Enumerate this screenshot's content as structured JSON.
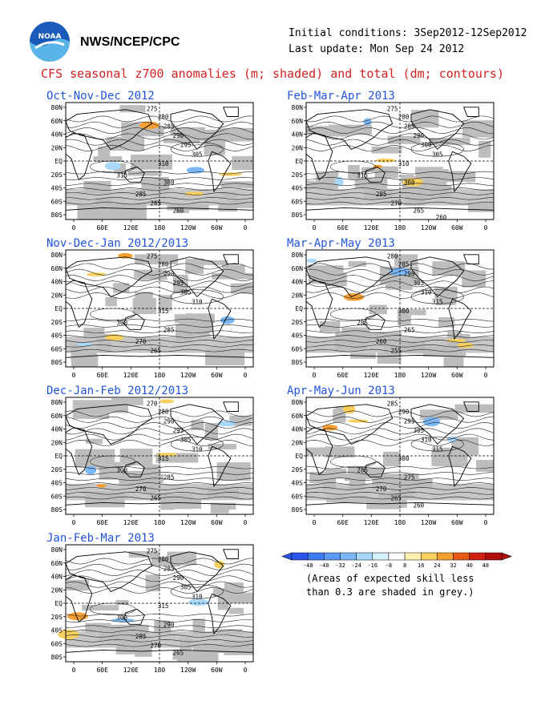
{
  "header": {
    "logo_icon": "noaa-logo-icon",
    "org": "NWS/NCEP/CPC",
    "initial_conditions": "Initial conditions: 3Sep2012-12Sep2012",
    "last_update": "Last update: Mon Sep 24 2012"
  },
  "title": "CFS seasonal z700 anomalies (m; shaded) and total (dm; contours)",
  "axes": {
    "lat_labels": [
      "80N",
      "60N",
      "40N",
      "20N",
      "EQ",
      "20S",
      "40S",
      "60S",
      "80S"
    ],
    "lon_labels": [
      "0",
      "60E",
      "120E",
      "180",
      "120W",
      "60W",
      "0"
    ]
  },
  "panels": [
    {
      "title": "Oct-Nov-Dec 2012",
      "contour_labels": [
        "275",
        "280",
        "285",
        "290",
        "295",
        "305",
        "310",
        "315",
        "300",
        "285",
        "265",
        "260"
      ]
    },
    {
      "title": "Feb-Mar-Apr 2013",
      "contour_labels": [
        "275",
        "280",
        "285",
        "290",
        "300",
        "305",
        "310",
        "315",
        "300",
        "285",
        "270",
        "265",
        "260"
      ]
    },
    {
      "title": "Nov-Dec-Jan 2012/2013",
      "contour_labels": [
        "275",
        "280",
        "290",
        "295",
        "305",
        "310",
        "315",
        "300",
        "285",
        "270",
        "265"
      ]
    },
    {
      "title": "Mar-Apr-May 2013",
      "contour_labels": [
        "280",
        "285",
        "290",
        "305",
        "310",
        "315",
        "300",
        "285",
        "265",
        "260",
        "255"
      ]
    },
    {
      "title": "Dec-Jan-Feb 2012/2013",
      "contour_labels": [
        "270",
        "280",
        "290",
        "295",
        "305",
        "310",
        "315",
        "300",
        "285",
        "270",
        "265"
      ]
    },
    {
      "title": "Apr-May-Jun 2013",
      "contour_labels": [
        "285",
        "290",
        "295",
        "305",
        "310",
        "315",
        "300",
        "285",
        "275",
        "270",
        "265",
        "260"
      ]
    },
    {
      "title": "Jan-Feb-Mar 2013",
      "contour_labels": [
        "275",
        "280",
        "285",
        "290",
        "305",
        "310",
        "315",
        "300",
        "290",
        "285",
        "270",
        "265"
      ]
    }
  ],
  "legend": {
    "values": [
      "-48",
      "-40",
      "-32",
      "-24",
      "-16",
      "-8",
      "8",
      "16",
      "24",
      "32",
      "40",
      "48"
    ],
    "colors": [
      "#2a55e8",
      "#3a7af0",
      "#5a9af5",
      "#7ab8f8",
      "#a8d8fb",
      "#d8effc",
      "#ffffff",
      "#fff2b0",
      "#f7d060",
      "#f5a030",
      "#e85a18",
      "#d02010",
      "#b01008"
    ],
    "note_line1": "(Areas of expected skill less",
    "note_line2": "than 0.3 are shaded in grey.)"
  },
  "colors": {
    "title_red": "#d42020",
    "panel_title_blue": "#2255dd",
    "skill_grey": "#bdbdbd",
    "noaa_blue": "#1a5ab8",
    "noaa_light_blue": "#59b4e8"
  }
}
